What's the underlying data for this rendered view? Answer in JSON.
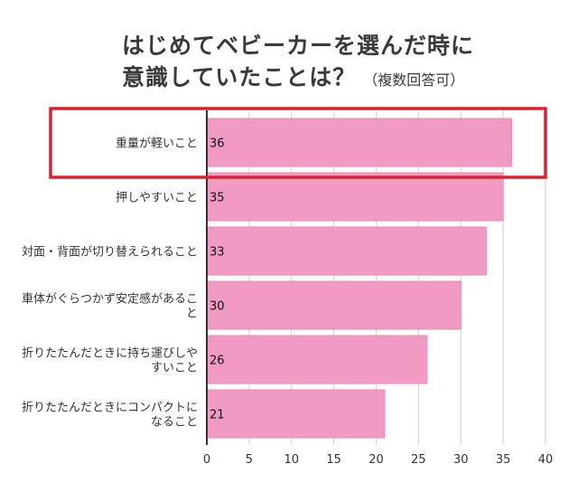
{
  "header": {
    "title_line1": "はじめてベビーカーを選んだ時に",
    "title_line2": "意識していたことは？",
    "title_note": "（複数回答可）"
  },
  "chart_data": {
    "type": "bar",
    "orientation": "horizontal",
    "categories": [
      [
        "重量が軽いこと"
      ],
      [
        "押しやすいこと"
      ],
      [
        "対面・背面が切り替えられること"
      ],
      [
        "車体がぐらつかず安定感があるこ",
        "と"
      ],
      [
        "折りたたんだときに持ち運びしや",
        "すいこと"
      ],
      [
        "折りたたんだときにコンパクトに",
        "なること"
      ]
    ],
    "values": [
      36,
      35,
      33,
      30,
      26,
      21
    ],
    "value_labels": [
      "36",
      "35",
      "33",
      "30",
      "26",
      "21"
    ],
    "xlim": [
      0,
      40
    ],
    "xticks": [
      "0",
      "5",
      "10",
      "15",
      "20",
      "25",
      "30",
      "35",
      "40"
    ],
    "grid": true,
    "highlighted_index": 0,
    "colors": {
      "bar": "#f19ac3",
      "bar_stroke": "#e68ab6",
      "highlight_frame": "#d9232e",
      "grid": "#d0d0d0",
      "axis": "#333333"
    }
  }
}
